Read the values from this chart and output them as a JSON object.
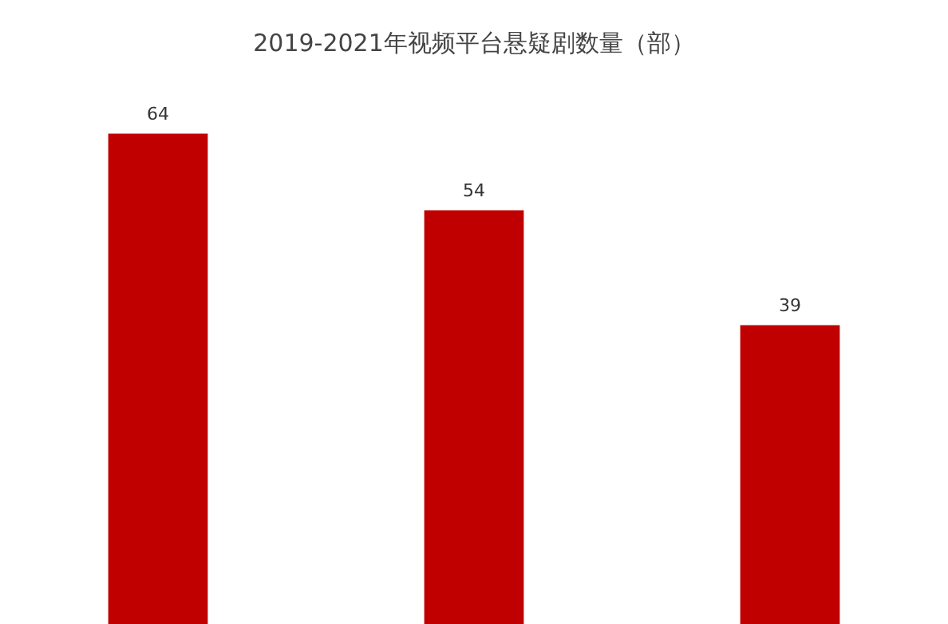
{
  "chart_data": {
    "type": "bar",
    "title": "2019-2021年视频平台悬疑剧数量（部）",
    "categories": [
      null,
      null,
      null
    ],
    "values": [
      64,
      54,
      39
    ],
    "color": "#c00000",
    "data_labels": true
  }
}
